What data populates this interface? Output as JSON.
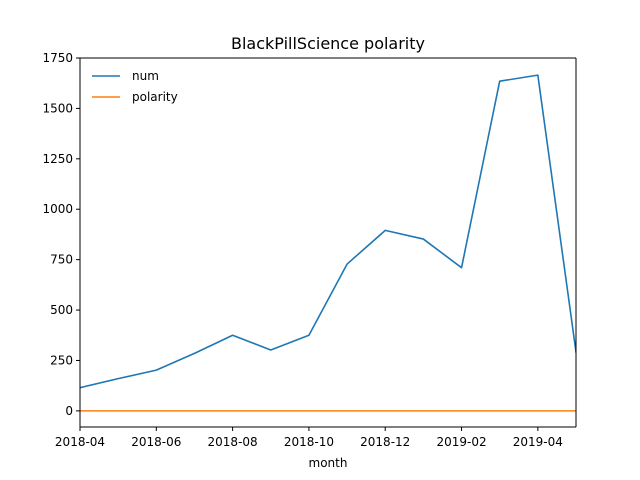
{
  "chart_data": {
    "type": "line",
    "title": "BlackPillScience polarity",
    "xlabel": "month",
    "ylabel": "",
    "x": [
      "2018-04",
      "2018-05",
      "2018-06",
      "2018-07",
      "2018-08",
      "2018-09",
      "2018-10",
      "2018-11",
      "2018-12",
      "2019-01",
      "2019-02",
      "2019-03",
      "2019-04",
      "2019-05"
    ],
    "x_ticks": [
      "2018-04",
      "2018-06",
      "2018-08",
      "2018-10",
      "2018-12",
      "2019-02",
      "2019-04"
    ],
    "y_ticks": [
      0,
      250,
      500,
      750,
      1000,
      1250,
      1500,
      1750
    ],
    "ylim": [
      -80,
      1750
    ],
    "xlim": [
      "2018-04",
      "2019-05"
    ],
    "grid": false,
    "legend_position": "top-left",
    "series": [
      {
        "name": "num",
        "color": "#1f77b4",
        "values": [
          115,
          160,
          202,
          285,
          375,
          302,
          375,
          728,
          895,
          852,
          710,
          1635,
          1665,
          292
        ]
      },
      {
        "name": "polarity",
        "color": "#ff7f0e",
        "values": [
          0,
          0,
          0,
          0,
          0,
          0,
          0,
          0,
          0,
          0,
          0,
          0,
          0,
          0
        ]
      }
    ]
  }
}
